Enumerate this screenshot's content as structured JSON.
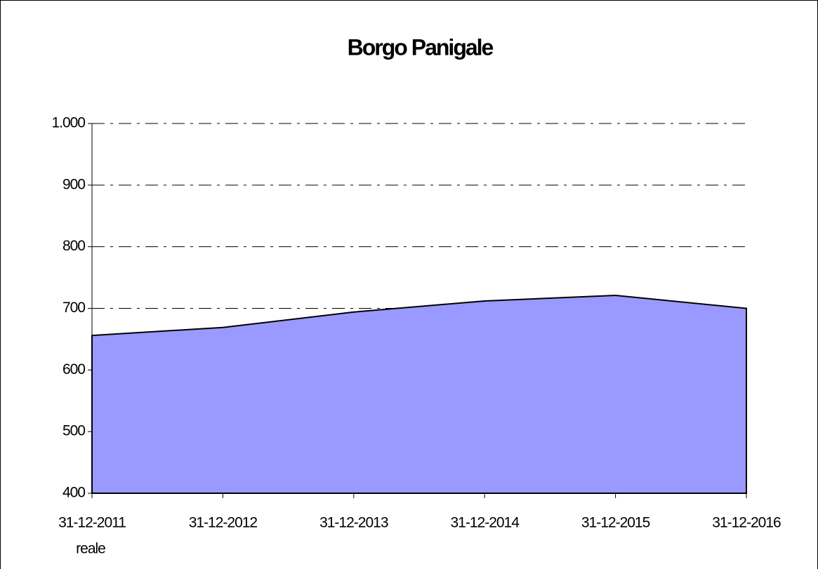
{
  "chart_data": {
    "type": "area",
    "title": "Borgo Panigale",
    "categories": [
      "31-12-2011",
      "31-12-2012",
      "31-12-2013",
      "31-12-2014",
      "31-12-2015",
      "31-12-2016"
    ],
    "annotation": "reale",
    "values": [
      656,
      669,
      694,
      712,
      721,
      700
    ],
    "color": "#9999ff",
    "ylim": [
      400,
      1000
    ],
    "yticks": [
      400,
      500,
      600,
      700,
      800,
      900,
      {
        "value": 1000,
        "label": "1.000"
      }
    ],
    "grid": true
  }
}
